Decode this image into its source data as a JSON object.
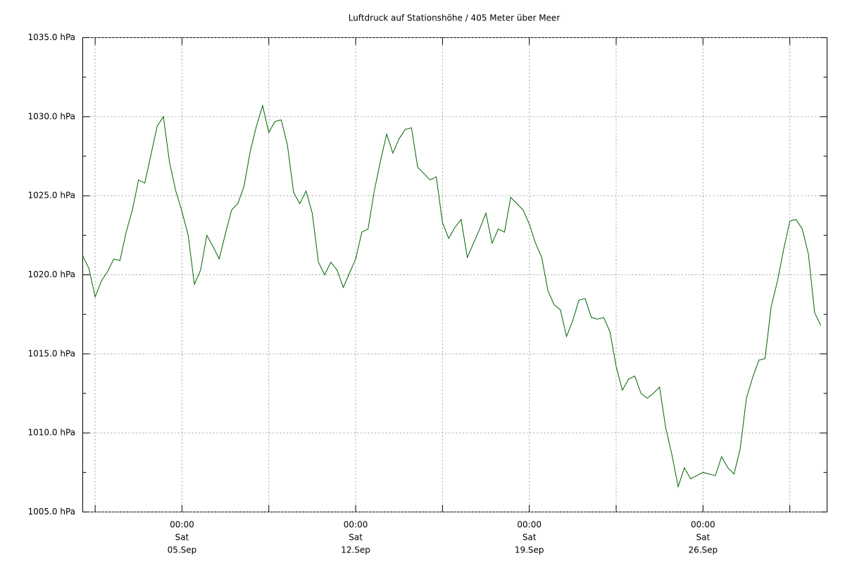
{
  "chart_data": {
    "type": "line",
    "title": "Luftdruck auf Stationshöhe / 405 Meter über Meer",
    "x": [
      "01.Sep 00:00",
      "01.Sep 06:00",
      "01.Sep 12:00",
      "01.Sep 18:00",
      "02.Sep 00:00",
      "02.Sep 06:00",
      "02.Sep 12:00",
      "02.Sep 18:00",
      "03.Sep 00:00",
      "03.Sep 06:00",
      "03.Sep 12:00",
      "03.Sep 18:00",
      "04.Sep 00:00",
      "04.Sep 06:00",
      "04.Sep 12:00",
      "04.Sep 18:00",
      "05.Sep 00:00",
      "05.Sep 06:00",
      "05.Sep 12:00",
      "05.Sep 18:00",
      "06.Sep 00:00",
      "06.Sep 06:00",
      "06.Sep 12:00",
      "06.Sep 18:00",
      "07.Sep 00:00",
      "07.Sep 06:00",
      "07.Sep 12:00",
      "07.Sep 18:00",
      "08.Sep 00:00",
      "08.Sep 06:00",
      "08.Sep 12:00",
      "08.Sep 18:00",
      "09.Sep 00:00",
      "09.Sep 06:00",
      "09.Sep 12:00",
      "09.Sep 18:00",
      "10.Sep 00:00",
      "10.Sep 06:00",
      "10.Sep 12:00",
      "10.Sep 18:00",
      "11.Sep 00:00",
      "11.Sep 06:00",
      "11.Sep 12:00",
      "11.Sep 18:00",
      "12.Sep 00:00",
      "12.Sep 06:00",
      "12.Sep 12:00",
      "12.Sep 18:00",
      "13.Sep 00:00",
      "13.Sep 06:00",
      "13.Sep 12:00",
      "13.Sep 18:00",
      "14.Sep 00:00",
      "14.Sep 06:00",
      "14.Sep 12:00",
      "14.Sep 18:00",
      "15.Sep 00:00",
      "15.Sep 06:00",
      "15.Sep 12:00",
      "15.Sep 18:00",
      "16.Sep 00:00",
      "16.Sep 06:00",
      "16.Sep 12:00",
      "16.Sep 18:00",
      "17.Sep 00:00",
      "17.Sep 06:00",
      "17.Sep 12:00",
      "17.Sep 18:00",
      "18.Sep 00:00",
      "18.Sep 06:00",
      "18.Sep 12:00",
      "18.Sep 18:00",
      "19.Sep 00:00",
      "19.Sep 06:00",
      "19.Sep 12:00",
      "19.Sep 18:00",
      "20.Sep 00:00",
      "20.Sep 06:00",
      "20.Sep 12:00",
      "20.Sep 18:00",
      "21.Sep 00:00",
      "21.Sep 06:00",
      "21.Sep 12:00",
      "21.Sep 18:00",
      "22.Sep 00:00",
      "22.Sep 06:00",
      "22.Sep 12:00",
      "22.Sep 18:00",
      "23.Sep 00:00",
      "23.Sep 06:00",
      "23.Sep 12:00",
      "23.Sep 18:00",
      "24.Sep 00:00",
      "24.Sep 06:00",
      "24.Sep 12:00",
      "24.Sep 18:00",
      "25.Sep 00:00",
      "25.Sep 06:00",
      "25.Sep 12:00",
      "25.Sep 18:00",
      "26.Sep 00:00",
      "26.Sep 06:00",
      "26.Sep 12:00",
      "26.Sep 18:00",
      "27.Sep 00:00",
      "27.Sep 06:00",
      "27.Sep 12:00",
      "27.Sep 18:00",
      "28.Sep 00:00",
      "28.Sep 06:00",
      "28.Sep 12:00",
      "28.Sep 18:00",
      "29.Sep 00:00",
      "29.Sep 06:00",
      "29.Sep 12:00",
      "29.Sep 18:00",
      "30.Sep 00:00",
      "30.Sep 06:00",
      "30.Sep 12:00",
      "30.Sep 18:00"
    ],
    "series": [
      {
        "color": "#006400",
        "values": [
          1021.2,
          1020.4,
          1018.6,
          1019.6,
          1020.2,
          1021.0,
          1020.9,
          1022.7,
          1024.1,
          1026.0,
          1025.8,
          1027.6,
          1029.4,
          1030.0,
          1027.1,
          1025.3,
          1024.0,
          1022.5,
          1019.4,
          1020.3,
          1022.5,
          1021.8,
          1021.0,
          1022.6,
          1024.1,
          1024.5,
          1025.6,
          1027.8,
          1029.4,
          1030.7,
          1029.0,
          1029.7,
          1029.8,
          1028.2,
          1025.2,
          1024.5,
          1025.3,
          1023.9,
          1020.8,
          1020.0,
          1020.8,
          1020.3,
          1019.2,
          1020.1,
          1021.0,
          1022.7,
          1022.9,
          1025.3,
          1027.2,
          1028.9,
          1027.7,
          1028.6,
          1029.2,
          1029.3,
          1026.8,
          1026.4,
          1026.0,
          1026.2,
          1023.3,
          1022.3,
          1023.0,
          1023.5,
          1021.1,
          1022.0,
          1022.9,
          1023.9,
          1022.0,
          1022.9,
          1022.7,
          1024.9,
          1024.5,
          1024.1,
          1023.2,
          1022.0,
          1021.1,
          1019.0,
          1018.1,
          1017.8,
          1016.1,
          1017.1,
          1018.4,
          1018.5,
          1017.3,
          1017.2,
          1017.3,
          1016.4,
          1014.2,
          1012.7,
          1013.4,
          1013.6,
          1012.5,
          1012.2,
          1012.5,
          1012.9,
          1010.3,
          1008.6,
          1006.6,
          1007.8,
          1007.1,
          1007.3,
          1007.5,
          1007.4,
          1007.3,
          1008.5,
          1007.8,
          1007.4,
          1009.0,
          1012.2,
          1013.5,
          1014.6,
          1014.7,
          1018.0,
          1019.6,
          1021.6,
          1023.4,
          1023.5,
          1022.9,
          1021.3,
          1017.6,
          1016.8
        ]
      }
    ],
    "xlim": [
      "01.Sep 00:00",
      "01.Oct 00:00"
    ],
    "xticks": [
      {
        "value": "05.Sep 00:00",
        "label": [
          "00:00",
          "Sat",
          "05.Sep"
        ]
      },
      {
        "value": "12.Sep 00:00",
        "label": [
          "00:00",
          "Sat",
          "12.Sep"
        ]
      },
      {
        "value": "19.Sep 00:00",
        "label": [
          "00:00",
          "Sat",
          "19.Sep"
        ]
      },
      {
        "value": "26.Sep 00:00",
        "label": [
          "00:00",
          "Sat",
          "26.Sep"
        ]
      }
    ],
    "xgrid": [
      "01.Sep 12:00",
      "08.Sep 12:00",
      "15.Sep 12:00",
      "22.Sep 12:00",
      "29.Sep 12:00"
    ],
    "ylim": [
      1005,
      1035
    ],
    "yticks": [
      {
        "value": 1005,
        "label": "1005.0 hPa"
      },
      {
        "value": 1010,
        "label": "1010.0 hPa"
      },
      {
        "value": 1015,
        "label": "1015.0 hPa"
      },
      {
        "value": 1020,
        "label": "1020.0 hPa"
      },
      {
        "value": 1025,
        "label": "1025.0 hPa"
      },
      {
        "value": 1030,
        "label": "1030.0 hPa"
      },
      {
        "value": 1035,
        "label": "1035.0 hPa"
      }
    ],
    "yminor": [
      1007.5,
      1012.5,
      1017.5,
      1022.5,
      1027.5,
      1032.5
    ],
    "grid": true
  }
}
